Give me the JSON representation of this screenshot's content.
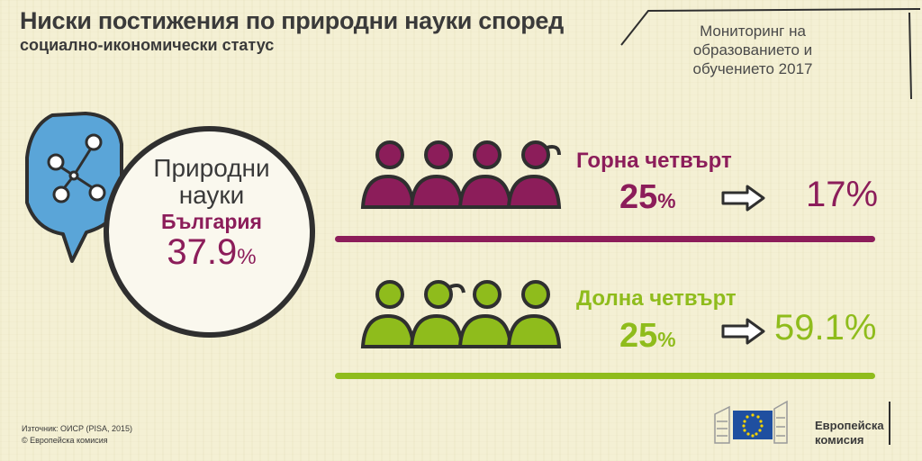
{
  "header": {
    "title": "Ниски постижения по природни науки според",
    "subtitle": "социално-икономически статус",
    "monitor": [
      "Мониторинг на",
      "образованието и",
      "обучението 2017"
    ]
  },
  "subject": {
    "name_line1": "Природни",
    "name_line2": "науки",
    "icon": "molecule-icon",
    "country": "България",
    "value_main": "37.9",
    "value_unit": "%"
  },
  "groups": {
    "top": {
      "label": "Горна четвърт",
      "from_main": "25",
      "from_unit": "%",
      "to": "17%",
      "color": "#8c1d5a"
    },
    "bottom": {
      "label": "Долна четвърт",
      "from_main": "25",
      "from_unit": "%",
      "to": "59.1%",
      "color": "#8fbc1c"
    }
  },
  "footer": {
    "source": "Източник: ОИСР (PISA, 2015)",
    "copyright": "© Европейска комисия",
    "logo_line1": "Европейска",
    "logo_line2": "комисия"
  }
}
